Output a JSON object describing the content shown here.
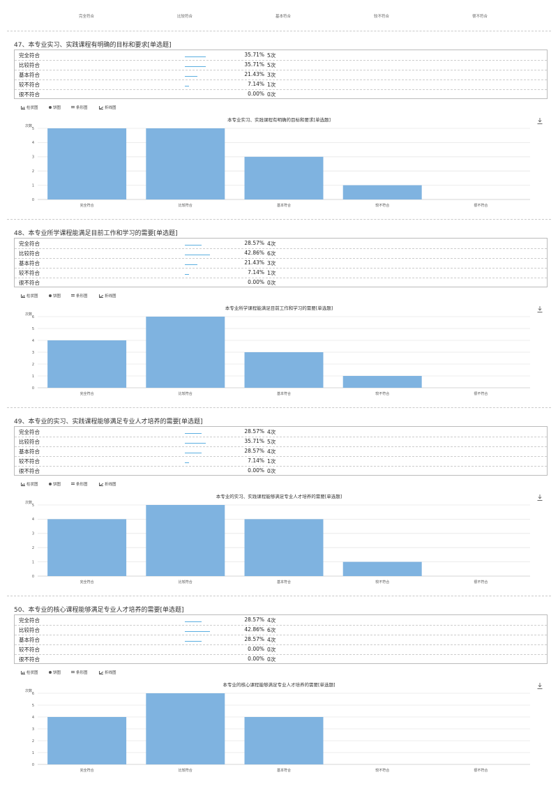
{
  "top_axis": {
    "labels": [
      "完全符合",
      "比较符合",
      "基本符合",
      "较不符合",
      "很不符合"
    ]
  },
  "toolbar": {
    "items": [
      {
        "icon": "bar-chart-icon",
        "label": "柱状图"
      },
      {
        "icon": "pie-chart-icon",
        "label": "饼图"
      },
      {
        "icon": "horizontal-bar-icon",
        "label": "条形图"
      },
      {
        "icon": "line-chart-icon",
        "label": "折线图"
      }
    ]
  },
  "colors": {
    "bar": "#7fb3e0",
    "progress": "#5aaee0",
    "grid": "#e6e6e6"
  },
  "questions": [
    {
      "title": "47、本专业实习、实践课程有明确的目标和要求[单选题]",
      "options": [
        {
          "label": "完全符合",
          "pct": "35.71%",
          "count": "5次",
          "fraction": 0.3571
        },
        {
          "label": "比较符合",
          "pct": "35.71%",
          "count": "5次",
          "fraction": 0.3571
        },
        {
          "label": "基本符合",
          "pct": "21.43%",
          "count": "3次",
          "fraction": 0.2143
        },
        {
          "label": "较不符合",
          "pct": "7.14%",
          "count": "1次",
          "fraction": 0.0714
        },
        {
          "label": "很不符合",
          "pct": "0.00%",
          "count": "0次",
          "fraction": 0
        }
      ]
    },
    {
      "title": "48、本专业所学课程能满足目前工作和学习的需要[单选题]",
      "options": [
        {
          "label": "完全符合",
          "pct": "28.57%",
          "count": "4次",
          "fraction": 0.2857
        },
        {
          "label": "比较符合",
          "pct": "42.86%",
          "count": "6次",
          "fraction": 0.4286
        },
        {
          "label": "基本符合",
          "pct": "21.43%",
          "count": "3次",
          "fraction": 0.2143
        },
        {
          "label": "较不符合",
          "pct": "7.14%",
          "count": "1次",
          "fraction": 0.0714
        },
        {
          "label": "很不符合",
          "pct": "0.00%",
          "count": "0次",
          "fraction": 0
        }
      ]
    },
    {
      "title": "49、本专业的实习、实践课程能够满足专业人才培养的需要[单选题]",
      "options": [
        {
          "label": "完全符合",
          "pct": "28.57%",
          "count": "4次",
          "fraction": 0.2857
        },
        {
          "label": "比较符合",
          "pct": "35.71%",
          "count": "5次",
          "fraction": 0.3571
        },
        {
          "label": "基本符合",
          "pct": "28.57%",
          "count": "4次",
          "fraction": 0.2857
        },
        {
          "label": "较不符合",
          "pct": "7.14%",
          "count": "1次",
          "fraction": 0.0714
        },
        {
          "label": "很不符合",
          "pct": "0.00%",
          "count": "0次",
          "fraction": 0
        }
      ]
    },
    {
      "title": "50、本专业的核心课程能够满足专业人才培养的需要[单选题]",
      "options": [
        {
          "label": "完全符合",
          "pct": "28.57%",
          "count": "4次",
          "fraction": 0.2857
        },
        {
          "label": "比较符合",
          "pct": "42.86%",
          "count": "6次",
          "fraction": 0.4286
        },
        {
          "label": "基本符合",
          "pct": "28.57%",
          "count": "4次",
          "fraction": 0.2857
        },
        {
          "label": "较不符合",
          "pct": "0.00%",
          "count": "0次",
          "fraction": 0
        },
        {
          "label": "很不符合",
          "pct": "0.00%",
          "count": "0次",
          "fraction": 0
        }
      ]
    }
  ],
  "chart_data": [
    {
      "type": "bar",
      "title": "本专业实习、实践课程有明确的目标和要求[单选题]",
      "ylabel": "次数",
      "categories": [
        "完全符合",
        "比较符合",
        "基本符合",
        "较不符合",
        "很不符合"
      ],
      "values": [
        5,
        5,
        3,
        1,
        0
      ],
      "ylim": [
        0,
        5
      ],
      "yticks": [
        0,
        1,
        2,
        3,
        4,
        5
      ],
      "grid": true
    },
    {
      "type": "bar",
      "title": "本专业所学课程能满足目前工作和学习的需要[单选题]",
      "ylabel": "次数",
      "categories": [
        "完全符合",
        "比较符合",
        "基本符合",
        "较不符合",
        "很不符合"
      ],
      "values": [
        4,
        6,
        3,
        1,
        0
      ],
      "ylim": [
        0,
        6
      ],
      "yticks": [
        0,
        1,
        2,
        3,
        4,
        5,
        6
      ],
      "grid": true
    },
    {
      "type": "bar",
      "title": "本专业的实习、实践课程能够满足专业人才培养的需要[单选题]",
      "ylabel": "次数",
      "categories": [
        "完全符合",
        "比较符合",
        "基本符合",
        "较不符合",
        "很不符合"
      ],
      "values": [
        4,
        5,
        4,
        1,
        0
      ],
      "ylim": [
        0,
        5
      ],
      "yticks": [
        0,
        1,
        2,
        3,
        4,
        5
      ],
      "grid": true
    },
    {
      "type": "bar",
      "title": "本专业的核心课程能够满足专业人才培养的需要[单选题]",
      "ylabel": "次数",
      "categories": [
        "完全符合",
        "比较符合",
        "基本符合",
        "较不符合",
        "很不符合"
      ],
      "values": [
        4,
        6,
        4,
        0,
        0
      ],
      "ylim": [
        0,
        6
      ],
      "yticks": [
        0,
        1,
        2,
        3,
        4,
        5,
        6
      ],
      "grid": true
    }
  ]
}
